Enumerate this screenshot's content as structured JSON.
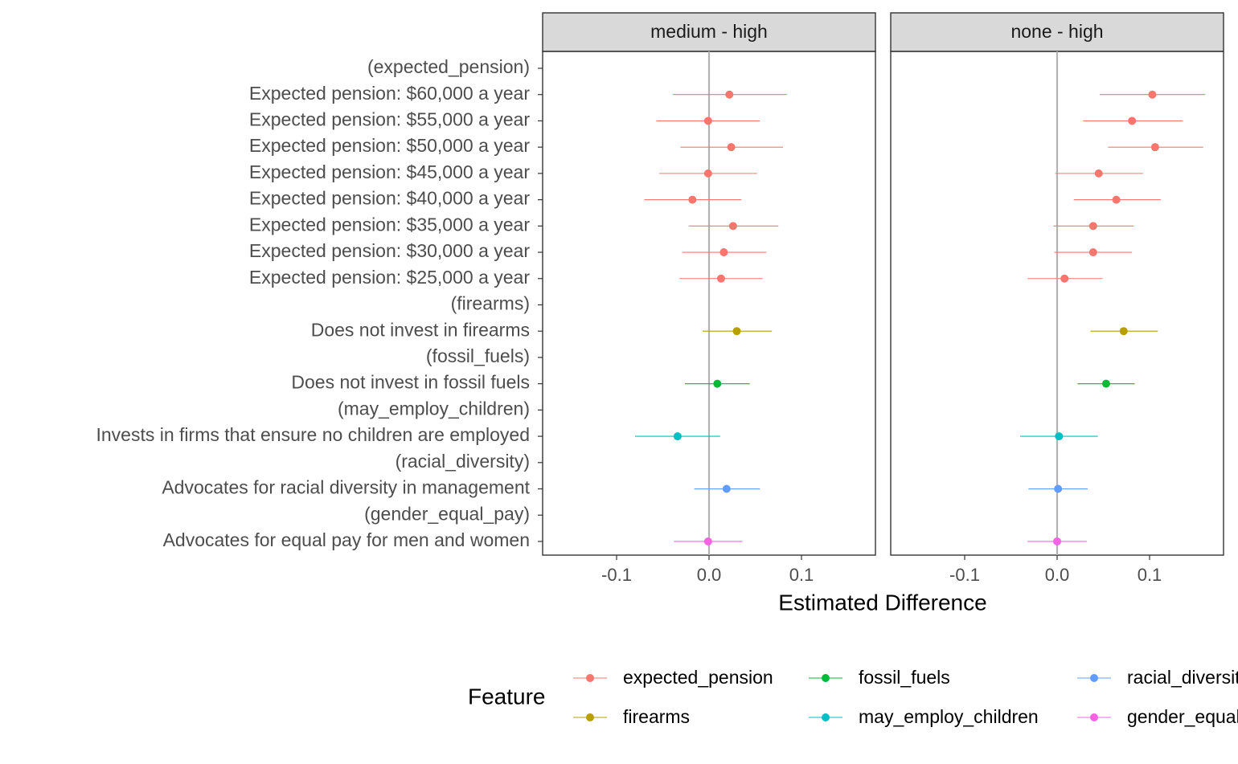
{
  "chart_data": {
    "type": "scatter",
    "subtype": "faceted dot-and-whisker (point estimate with confidence interval)",
    "facets": [
      "medium - high",
      "none - high"
    ],
    "xlabel": "Estimated Difference",
    "ylabel": "",
    "xlim": [
      -0.18,
      0.18
    ],
    "xticks": [
      -0.1,
      0.0,
      0.1
    ],
    "xtick_labels": [
      "-0.1",
      "0.0",
      "0.1"
    ],
    "reference_line_x": 0,
    "grid": false,
    "y_categories": [
      "(expected_pension)",
      "Expected pension: $60,000 a year",
      "Expected pension: $55,000 a year",
      "Expected pension: $50,000 a year",
      "Expected pension: $45,000 a year",
      "Expected pension: $40,000 a year",
      "Expected pension: $35,000 a year",
      "Expected pension: $30,000 a year",
      "Expected pension: $25,000 a year",
      "(firearms)",
      "Does not invest in firearms",
      "(fossil_fuels)",
      "Does not invest in fossil fuels",
      "(may_employ_children)",
      "Invests in firms that ensure no children are employed",
      "(racial_diversity)",
      "Advocates for racial diversity in management",
      "(gender_equal_pay)",
      "Advocates for equal pay for men and women"
    ],
    "legend": {
      "title": "Feature",
      "position": "bottom",
      "entries": [
        "expected_pension",
        "firearms",
        "fossil_fuels",
        "may_employ_children",
        "racial_diversity",
        "gender_equal_pay"
      ]
    },
    "colors": {
      "expected_pension": "#F8766D",
      "firearms": "#B79F00",
      "fossil_fuels": "#00BA38",
      "may_employ_children": "#00BFC4",
      "racial_diversity": "#619CFF",
      "gender_equal_pay": "#F564E3"
    },
    "series": [
      {
        "facet": "medium - high",
        "points": [
          {
            "category": "Expected pension: $60,000 a year",
            "feature": "expected_pension",
            "estimate": 0.022,
            "lower": -0.039,
            "upper": 0.084
          },
          {
            "category": "Expected pension: $55,000 a year",
            "feature": "expected_pension",
            "estimate": -0.001,
            "lower": -0.057,
            "upper": 0.055
          },
          {
            "category": "Expected pension: $50,000 a year",
            "feature": "expected_pension",
            "estimate": 0.024,
            "lower": -0.031,
            "upper": 0.08
          },
          {
            "category": "Expected pension: $45,000 a year",
            "feature": "expected_pension",
            "estimate": -0.001,
            "lower": -0.054,
            "upper": 0.052
          },
          {
            "category": "Expected pension: $40,000 a year",
            "feature": "expected_pension",
            "estimate": -0.018,
            "lower": -0.07,
            "upper": 0.035
          },
          {
            "category": "Expected pension: $35,000 a year",
            "feature": "expected_pension",
            "estimate": 0.026,
            "lower": -0.022,
            "upper": 0.075
          },
          {
            "category": "Expected pension: $30,000 a year",
            "feature": "expected_pension",
            "estimate": 0.016,
            "lower": -0.029,
            "upper": 0.062
          },
          {
            "category": "Expected pension: $25,000 a year",
            "feature": "expected_pension",
            "estimate": 0.013,
            "lower": -0.032,
            "upper": 0.058
          },
          {
            "category": "Does not invest in firearms",
            "feature": "firearms",
            "estimate": 0.03,
            "lower": -0.007,
            "upper": 0.068
          },
          {
            "category": "Does not invest in fossil fuels",
            "feature": "fossil_fuels",
            "estimate": 0.009,
            "lower": -0.026,
            "upper": 0.044
          },
          {
            "category": "Invests in firms that ensure no children are employed",
            "feature": "may_employ_children",
            "estimate": -0.034,
            "lower": -0.08,
            "upper": 0.012
          },
          {
            "category": "Advocates for racial diversity in management",
            "feature": "racial_diversity",
            "estimate": 0.019,
            "lower": -0.016,
            "upper": 0.055
          },
          {
            "category": "Advocates for equal pay for men and women",
            "feature": "gender_equal_pay",
            "estimate": -0.001,
            "lower": -0.038,
            "upper": 0.036
          }
        ]
      },
      {
        "facet": "none - high",
        "points": [
          {
            "category": "Expected pension: $60,000 a year",
            "feature": "expected_pension",
            "estimate": 0.103,
            "lower": 0.046,
            "upper": 0.16
          },
          {
            "category": "Expected pension: $55,000 a year",
            "feature": "expected_pension",
            "estimate": 0.081,
            "lower": 0.028,
            "upper": 0.136
          },
          {
            "category": "Expected pension: $50,000 a year",
            "feature": "expected_pension",
            "estimate": 0.106,
            "lower": 0.055,
            "upper": 0.158
          },
          {
            "category": "Expected pension: $45,000 a year",
            "feature": "expected_pension",
            "estimate": 0.045,
            "lower": -0.002,
            "upper": 0.093
          },
          {
            "category": "Expected pension: $40,000 a year",
            "feature": "expected_pension",
            "estimate": 0.064,
            "lower": 0.018,
            "upper": 0.112
          },
          {
            "category": "Expected pension: $35,000 a year",
            "feature": "expected_pension",
            "estimate": 0.039,
            "lower": -0.004,
            "upper": 0.083
          },
          {
            "category": "Expected pension: $30,000 a year",
            "feature": "expected_pension",
            "estimate": 0.039,
            "lower": -0.003,
            "upper": 0.081
          },
          {
            "category": "Expected pension: $25,000 a year",
            "feature": "expected_pension",
            "estimate": 0.008,
            "lower": -0.032,
            "upper": 0.049
          },
          {
            "category": "Does not invest in firearms",
            "feature": "firearms",
            "estimate": 0.072,
            "lower": 0.036,
            "upper": 0.109
          },
          {
            "category": "Does not invest in fossil fuels",
            "feature": "fossil_fuels",
            "estimate": 0.053,
            "lower": 0.022,
            "upper": 0.084
          },
          {
            "category": "Invests in firms that ensure no children are employed",
            "feature": "may_employ_children",
            "estimate": 0.002,
            "lower": -0.04,
            "upper": 0.044
          },
          {
            "category": "Advocates for racial diversity in management",
            "feature": "racial_diversity",
            "estimate": 0.001,
            "lower": -0.031,
            "upper": 0.033
          },
          {
            "category": "Advocates for equal pay for men and women",
            "feature": "gender_equal_pay",
            "estimate": 0.0,
            "lower": -0.032,
            "upper": 0.032
          }
        ]
      }
    ]
  }
}
